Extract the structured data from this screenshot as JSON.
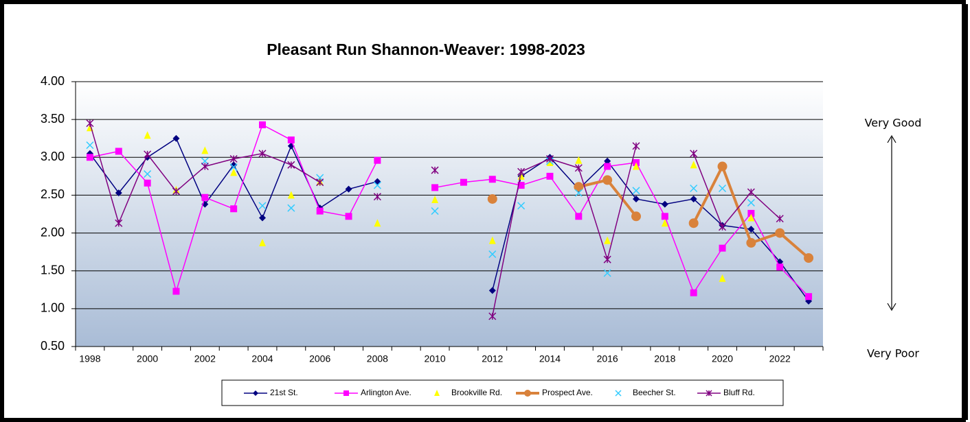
{
  "chart_data": {
    "type": "line",
    "title": "Pleasant Run Shannon-Weaver: 1998-2023",
    "categories": [
      "1998",
      null,
      "2000",
      null,
      "2002",
      null,
      "2004",
      null,
      "2006",
      null,
      "2008",
      null,
      "2010",
      null,
      "2012",
      null,
      "2014",
      null,
      "2016",
      null,
      "2018",
      null,
      "2020",
      null,
      "2022",
      null
    ],
    "ylim": [
      0.5,
      4
    ],
    "yticks": [
      {
        "value": 0.5,
        "label": "0.50"
      },
      {
        "value": 1,
        "label": "1.00"
      },
      {
        "value": 1.5,
        "label": "1.50"
      },
      {
        "value": 2,
        "label": "2.00"
      },
      {
        "value": 2.5,
        "label": "2.50"
      },
      {
        "value": 3,
        "label": "3.00"
      },
      {
        "value": 3.5,
        "label": "3.50"
      },
      {
        "value": 4,
        "label": "4.00"
      }
    ],
    "grid": true,
    "legend": "bottom",
    "annotations": [
      "Very Good",
      "Very Poor"
    ],
    "series": [
      {
        "name": "21st St.",
        "color": "#000080",
        "marker": "diamond",
        "line_width": 1.5,
        "values": [
          3.05,
          2.53,
          3.0,
          3.25,
          2.38,
          2.9,
          2.2,
          3.15,
          2.33,
          2.58,
          2.68,
          null,
          null,
          null,
          1.24,
          2.75,
          3.0,
          2.58,
          2.95,
          2.45,
          2.38,
          2.45,
          2.1,
          2.05,
          1.62,
          1.1
        ]
      },
      {
        "name": "Arlington Ave.",
        "color": "#ff00ff",
        "marker": "square",
        "line_width": 1.5,
        "values": [
          3.0,
          3.08,
          2.66,
          1.23,
          2.47,
          2.32,
          3.43,
          3.23,
          2.29,
          2.22,
          2.96,
          null,
          2.6,
          2.67,
          2.71,
          2.63,
          2.75,
          2.22,
          2.88,
          2.93,
          2.22,
          1.21,
          1.8,
          2.26,
          1.55,
          1.16
        ]
      },
      {
        "name": "Brookville Rd.",
        "color": "#ffff00",
        "marker": "triangle",
        "line_width": 0,
        "values": [
          3.39,
          null,
          3.29,
          2.57,
          3.09,
          2.8,
          1.87,
          2.5,
          2.68,
          null,
          2.13,
          null,
          2.44,
          null,
          1.9,
          2.75,
          2.93,
          2.96,
          1.9,
          2.88,
          2.13,
          2.9,
          1.4,
          2.2,
          null,
          null
        ]
      },
      {
        "name": "Prospect Ave.",
        "color": "#d9823b",
        "marker": "circle",
        "line_width": 4,
        "values": [
          null,
          null,
          null,
          null,
          null,
          null,
          null,
          null,
          null,
          null,
          null,
          null,
          null,
          null,
          2.45,
          null,
          null,
          2.61,
          2.7,
          2.22,
          null,
          2.13,
          2.88,
          1.87,
          2.0,
          1.67
        ]
      },
      {
        "name": "Beecher St.",
        "color": "#33ccff",
        "marker": "x",
        "line_width": 0,
        "values": [
          3.16,
          null,
          2.78,
          2.55,
          2.95,
          2.87,
          2.36,
          2.33,
          2.73,
          null,
          2.63,
          null,
          2.29,
          null,
          1.72,
          2.36,
          2.95,
          2.53,
          1.47,
          2.56,
          null,
          2.59,
          2.59,
          2.4,
          null,
          null
        ]
      },
      {
        "name": "Bluff Rd.",
        "color": "#800080",
        "marker": "asterisk",
        "line_width": 1.5,
        "values": [
          3.45,
          2.13,
          3.04,
          2.55,
          2.88,
          2.98,
          3.05,
          2.9,
          2.67,
          null,
          2.48,
          null,
          2.83,
          null,
          0.9,
          2.81,
          2.98,
          2.86,
          1.65,
          3.15,
          null,
          3.05,
          2.08,
          2.54,
          2.19,
          null
        ]
      }
    ]
  }
}
